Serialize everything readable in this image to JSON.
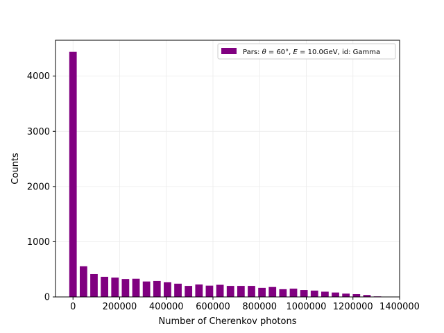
{
  "chart_data": {
    "type": "bar",
    "xlabel": "Number of Cherenkov photons",
    "ylabel": "Counts",
    "xlim": [
      -75000,
      1400000
    ],
    "ylim": [
      0,
      4650
    ],
    "xticks": [
      0,
      200000,
      400000,
      600000,
      800000,
      1000000,
      1200000,
      1400000
    ],
    "xtick_labels": [
      "0",
      "200000",
      "400000",
      "600000",
      "800000",
      "1000000",
      "1200000",
      "1400000"
    ],
    "yticks": [
      0,
      1000,
      2000,
      3000,
      4000
    ],
    "ytick_labels": [
      "0",
      "1000",
      "2000",
      "3000",
      "4000"
    ],
    "grid": true,
    "legend_position": "top-right",
    "bar_color": "#800080",
    "bar_width": 32000,
    "x": [
      0,
      45000,
      90000,
      135000,
      180000,
      225000,
      270000,
      315000,
      360000,
      405000,
      450000,
      495000,
      540000,
      585000,
      630000,
      675000,
      720000,
      765000,
      810000,
      855000,
      900000,
      945000,
      990000,
      1035000,
      1080000,
      1125000,
      1170000,
      1215000,
      1260000,
      1305000
    ],
    "values": [
      4440,
      555,
      415,
      365,
      350,
      325,
      330,
      280,
      290,
      265,
      240,
      200,
      225,
      205,
      220,
      200,
      200,
      200,
      165,
      180,
      140,
      150,
      125,
      115,
      95,
      80,
      60,
      50,
      35,
      10
    ],
    "series": [
      {
        "name_prefix": "Pars: ",
        "name_theta": "θ",
        "name_theta_value": " = 60°",
        "name_sep": ", ",
        "name_E": "E",
        "name_E_value": " = 10.0GeV, id: Gamma"
      }
    ]
  }
}
